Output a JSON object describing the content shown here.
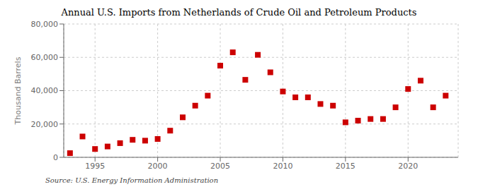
{
  "chart_data": {
    "type": "scatter",
    "title": "Annual U.S. Imports from Netherlands of Crude Oil and Petroleum Products",
    "ylabel": "Thousand Barrels",
    "annotations": [
      "Source: U.S. Energy Information Administration"
    ],
    "x": [
      1993,
      1994,
      1995,
      1996,
      1997,
      1998,
      1999,
      2000,
      2001,
      2002,
      2003,
      2004,
      2005,
      2006,
      2007,
      2008,
      2009,
      2010,
      2011,
      2012,
      2013,
      2014,
      2015,
      2016,
      2017,
      2018,
      2019,
      2020,
      2021,
      2022,
      2023
    ],
    "values": [
      2500,
      12500,
      5000,
      6500,
      8500,
      10500,
      10000,
      11000,
      16000,
      24000,
      31000,
      37000,
      55000,
      63000,
      46500,
      61500,
      51000,
      39500,
      36000,
      36000,
      32000,
      31000,
      21000,
      22000,
      23000,
      23000,
      30000,
      41000,
      46000,
      30000,
      37000
    ],
    "color": "#cc0000",
    "marker": "square",
    "xlim": [
      1992.5,
      2024
    ],
    "xticks": [
      1995,
      2000,
      2005,
      2010,
      2015,
      2020
    ],
    "ylim": [
      0,
      80000
    ],
    "yticks": [
      0,
      {
        "value": 20000,
        "label": "20,000"
      },
      {
        "value": 40000,
        "label": "40,000"
      },
      {
        "value": 60000,
        "label": "60,000"
      },
      {
        "value": 80000,
        "label": "80,000"
      }
    ],
    "grid": true
  }
}
